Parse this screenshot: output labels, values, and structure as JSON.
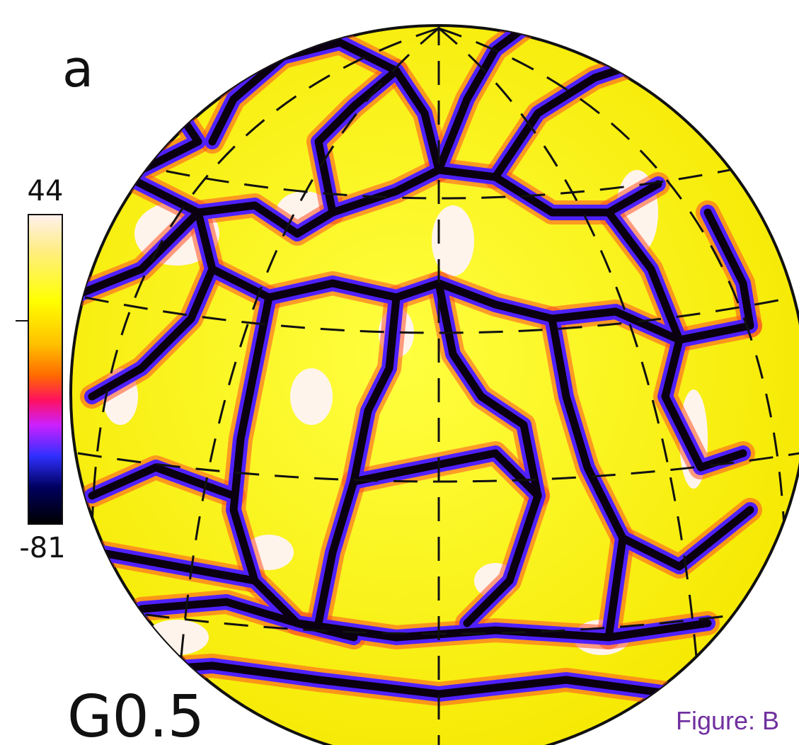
{
  "panel_label": "a",
  "colorbar": {
    "max": 44,
    "min": -81
  },
  "model_label": "G0.5",
  "caption": "Figure: B"
}
